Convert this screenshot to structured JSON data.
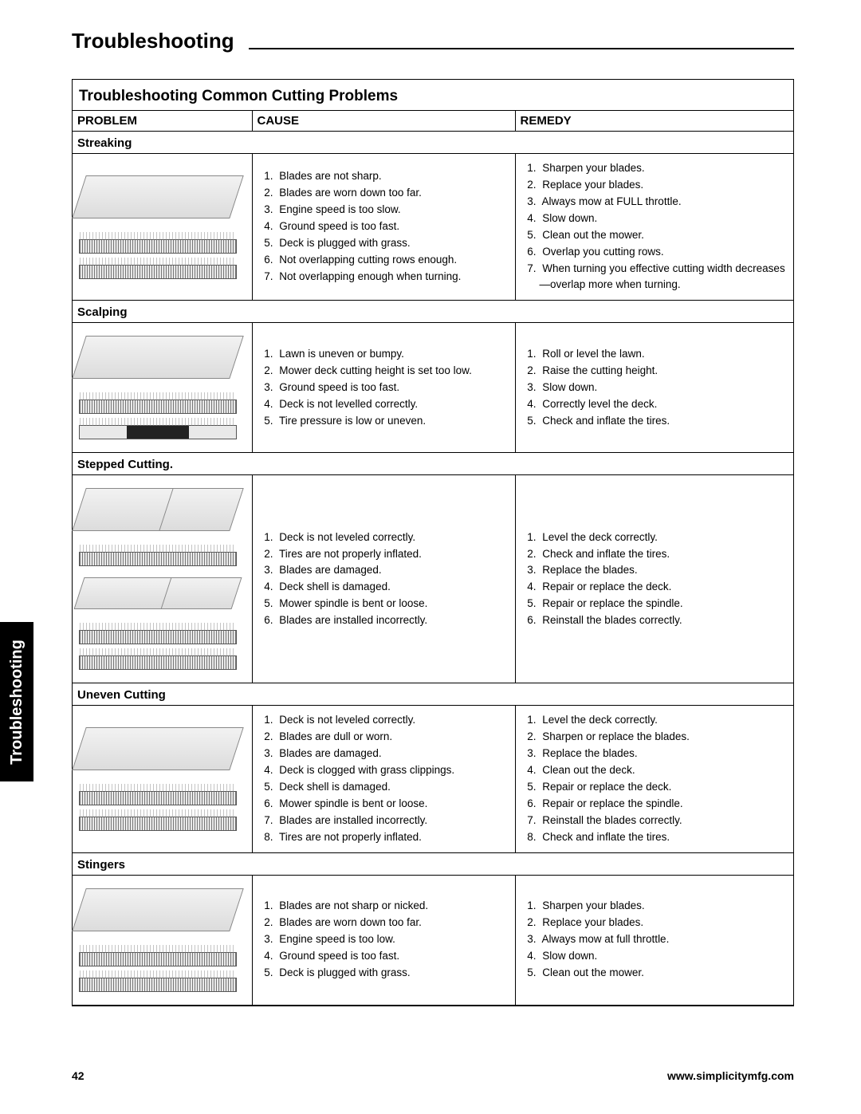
{
  "page": {
    "title": "Troubleshooting",
    "table_title": "Troubleshooting Common Cutting Problems",
    "columns": {
      "problem": "PROBLEM",
      "cause": "CAUSE",
      "remedy": "REMEDY"
    },
    "side_tab": "Troubleshooting",
    "page_number": "42",
    "site": "www.simplicitymfg.com"
  },
  "sections": [
    {
      "label": "Streaking",
      "causes": [
        "Blades are not sharp.",
        "Blades are worn down too far.",
        "Engine speed is too slow.",
        "Ground speed is too fast.",
        "Deck is plugged with grass.",
        "Not overlapping cutting rows enough.",
        "Not overlapping enough when turning."
      ],
      "remedies": [
        "Sharpen your blades.",
        "Replace your blades.",
        "Always mow at FULL throttle.",
        "Slow down.",
        "Clean out the mower.",
        "Overlap you cutting rows.",
        "When turning you effective cutting width decreases—overlap more when turning."
      ]
    },
    {
      "label": "Scalping",
      "causes": [
        "Lawn is uneven or bumpy.",
        "Mower deck cutting height is set too low.",
        "Ground speed is too fast.",
        "Deck is not levelled correctly.",
        "Tire pressure is low or uneven."
      ],
      "remedies": [
        "Roll or level the lawn.",
        "Raise the cutting height.",
        "Slow down.",
        "Correctly level the deck.",
        "Check and inflate the tires."
      ]
    },
    {
      "label": "Stepped Cutting.",
      "causes": [
        "Deck is not leveled correctly.",
        "Tires are not properly inflated.",
        "Blades are damaged.",
        "Deck shell is damaged.",
        "Mower spindle is bent or loose.",
        "Blades are installed incorrectly."
      ],
      "remedies": [
        "Level the deck correctly.",
        "Check and inflate the tires.",
        "Replace the blades.",
        "Repair or replace the deck.",
        "Repair or replace the spindle.",
        "Reinstall the blades correctly."
      ]
    },
    {
      "label": "Uneven Cutting",
      "causes": [
        "Deck is not leveled correctly.",
        "Blades are dull or worn.",
        "Blades are damaged.",
        "Deck is clogged with grass clippings.",
        "Deck shell is damaged.",
        "Mower spindle is bent or loose.",
        "Blades are installed incorrectly.",
        "Tires are not properly inflated."
      ],
      "remedies": [
        "Level the deck correctly.",
        "Sharpen or replace the blades.",
        "Replace the blades.",
        "Clean out the deck.",
        "Repair or replace the deck.",
        "Repair or replace the spindle.",
        "Reinstall the blades correctly.",
        "Check and inflate the tires."
      ]
    },
    {
      "label": "Stingers",
      "causes": [
        "Blades are not sharp or nicked.",
        "Blades are worn down too far.",
        "Engine speed is too low.",
        "Ground speed is too fast.",
        "Deck is plugged with grass."
      ],
      "remedies": [
        "Sharpen your blades.",
        "Replace your blades.",
        "Always mow at full throttle.",
        "Slow down.",
        "Clean out the mower."
      ]
    }
  ]
}
